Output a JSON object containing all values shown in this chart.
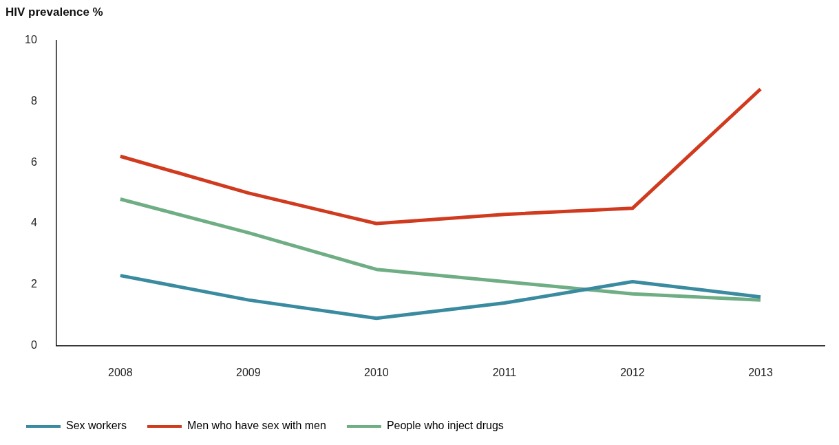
{
  "chart_data": {
    "type": "line",
    "title": "HIV prevalence %",
    "categories": [
      "2008",
      "2009",
      "2010",
      "2011",
      "2012",
      "2013"
    ],
    "series": [
      {
        "name": "Sex workers",
        "color": "#3a8aa0",
        "values": [
          2.3,
          1.5,
          0.9,
          1.4,
          2.1,
          1.6
        ]
      },
      {
        "name": "Men who have sex with men",
        "color": "#d03a1e",
        "values": [
          6.2,
          5.0,
          4.0,
          4.3,
          4.5,
          8.4
        ]
      },
      {
        "name": "People who inject drugs",
        "color": "#6fae84",
        "values": [
          4.8,
          3.7,
          2.5,
          2.1,
          1.7,
          1.5
        ]
      }
    ],
    "ylim": [
      0,
      10
    ],
    "yticks": [
      0,
      2,
      4,
      6,
      8,
      10
    ],
    "legend": "bottom left",
    "marker": "none",
    "line_style": "solid"
  }
}
